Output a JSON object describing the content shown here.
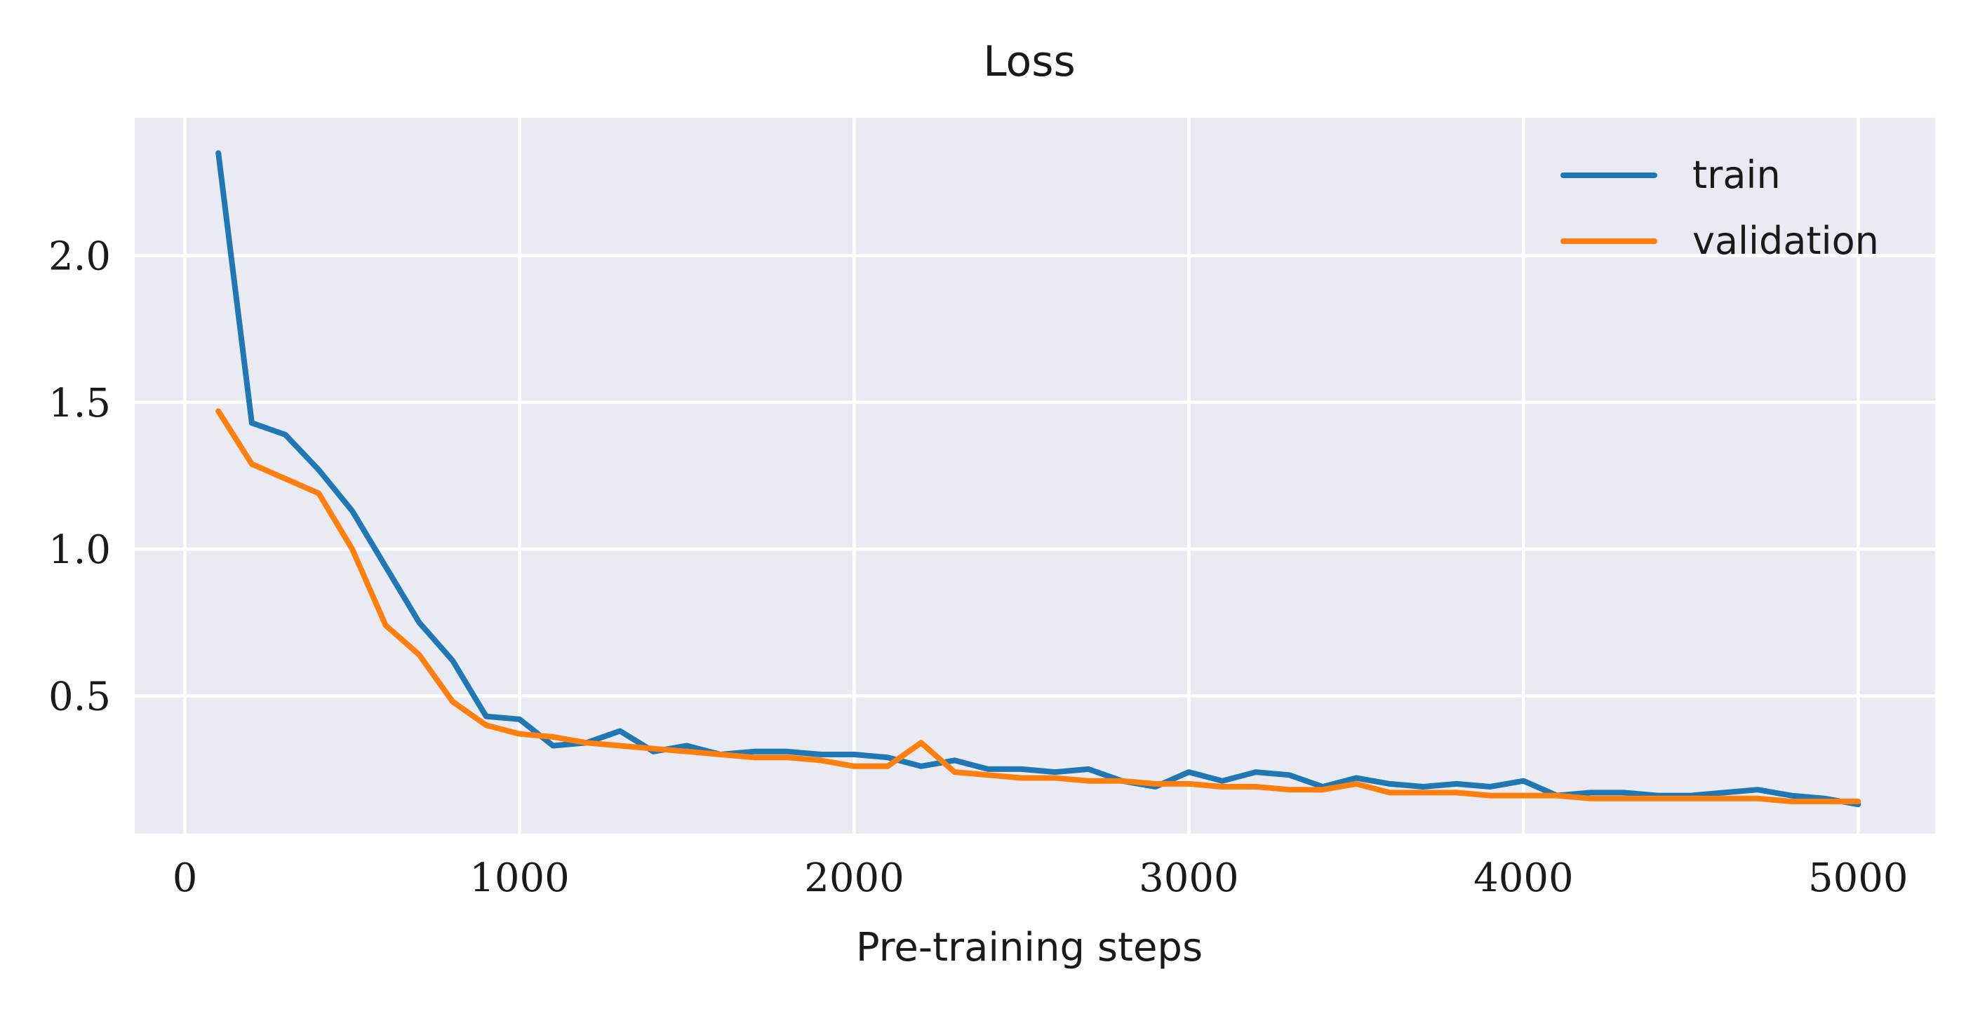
{
  "chart_data": {
    "type": "line",
    "title": "Loss",
    "xlabel": "Pre-training steps",
    "ylabel": "",
    "xlim": [
      -150,
      5230
    ],
    "ylim": [
      0.03,
      2.47
    ],
    "xticks": [
      0,
      1000,
      2000,
      3000,
      4000,
      5000
    ],
    "xtick_labels": [
      "0",
      "1000",
      "2000",
      "3000",
      "4000",
      "5000"
    ],
    "yticks": [
      0.5,
      1.0,
      1.5,
      2.0
    ],
    "ytick_labels": [
      "0.5",
      "1.0",
      "1.5",
      "2.0"
    ],
    "grid": true,
    "legend_position": "top-right",
    "x": [
      100,
      200,
      300,
      400,
      500,
      600,
      700,
      800,
      900,
      1000,
      1100,
      1200,
      1300,
      1400,
      1500,
      1600,
      1700,
      1800,
      1900,
      2000,
      2100,
      2200,
      2300,
      2400,
      2500,
      2600,
      2700,
      2800,
      2900,
      3000,
      3100,
      3200,
      3300,
      3400,
      3500,
      3600,
      3700,
      3800,
      3900,
      4000,
      4100,
      4200,
      4300,
      4400,
      4500,
      4600,
      4700,
      4800,
      4900,
      5000
    ],
    "series": [
      {
        "name": "train",
        "color": "#1f77b4",
        "values": [
          2.35,
          1.43,
          1.39,
          1.27,
          1.13,
          0.94,
          0.75,
          0.62,
          0.43,
          0.42,
          0.33,
          0.34,
          0.38,
          0.31,
          0.33,
          0.3,
          0.31,
          0.31,
          0.3,
          0.3,
          0.29,
          0.26,
          0.28,
          0.25,
          0.25,
          0.24,
          0.25,
          0.21,
          0.19,
          0.24,
          0.21,
          0.24,
          0.23,
          0.19,
          0.22,
          0.2,
          0.19,
          0.2,
          0.19,
          0.21,
          0.16,
          0.17,
          0.17,
          0.16,
          0.16,
          0.17,
          0.18,
          0.16,
          0.15,
          0.13
        ]
      },
      {
        "name": "validation",
        "color": "#ff7f0e",
        "values": [
          1.47,
          1.29,
          1.24,
          1.19,
          1.0,
          0.74,
          0.64,
          0.48,
          0.4,
          0.37,
          0.36,
          0.34,
          0.33,
          0.32,
          0.31,
          0.3,
          0.29,
          0.29,
          0.28,
          0.26,
          0.26,
          0.34,
          0.24,
          0.23,
          0.22,
          0.22,
          0.21,
          0.21,
          0.2,
          0.2,
          0.19,
          0.19,
          0.18,
          0.18,
          0.2,
          0.17,
          0.17,
          0.17,
          0.16,
          0.16,
          0.16,
          0.15,
          0.15,
          0.15,
          0.15,
          0.15,
          0.15,
          0.14,
          0.14,
          0.14
        ]
      }
    ]
  }
}
